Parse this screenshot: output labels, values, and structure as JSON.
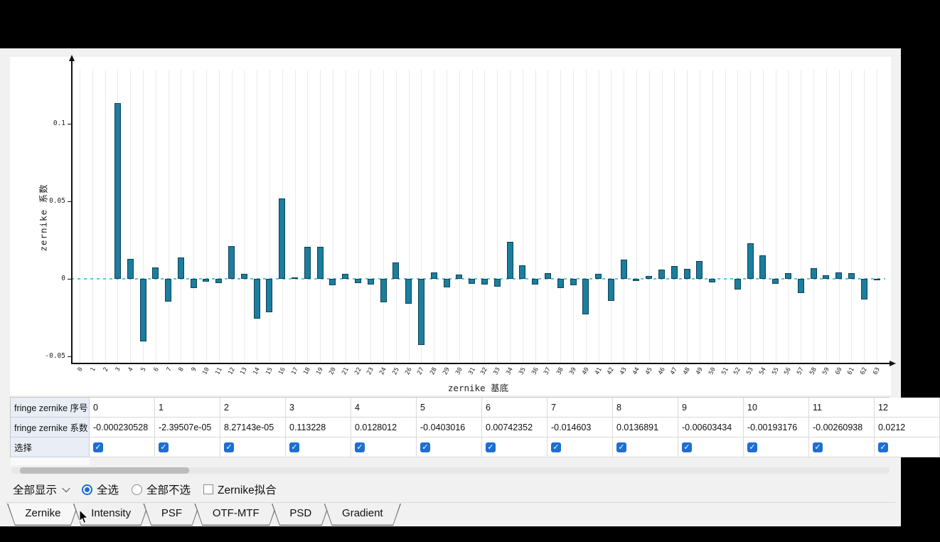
{
  "chart_data": {
    "type": "bar",
    "title": "",
    "xlabel": "zernike 基底",
    "ylabel": "zernike 系数",
    "x": [
      0,
      1,
      2,
      3,
      4,
      5,
      6,
      7,
      8,
      9,
      10,
      11,
      12,
      13,
      14,
      15,
      16,
      17,
      18,
      19,
      20,
      21,
      22,
      23,
      24,
      25,
      26,
      27,
      28,
      29,
      30,
      31,
      32,
      33,
      34,
      35,
      36,
      37,
      38,
      39,
      40,
      41,
      42,
      43,
      44,
      45,
      46,
      47,
      48,
      49,
      50,
      51,
      52,
      53,
      54,
      55,
      56,
      57,
      58,
      59,
      60,
      61,
      62,
      63
    ],
    "values": [
      -0.000230528,
      -2.39507e-05,
      8.27143e-05,
      0.113228,
      0.0128012,
      -0.0403016,
      0.00742352,
      -0.014603,
      0.0136891,
      -0.00603434,
      -0.00193176,
      -0.00260938,
      0.0212,
      0.0032,
      -0.0257,
      -0.0216,
      0.0518,
      0.001,
      0.0205,
      0.0208,
      -0.004,
      0.0031,
      -0.0027,
      -0.0038,
      -0.0149,
      0.0104,
      -0.0162,
      -0.0428,
      0.004,
      -0.0054,
      0.0028,
      -0.0032,
      -0.0036,
      -0.005,
      0.0239,
      0.0086,
      -0.0036,
      0.0036,
      -0.0059,
      -0.0041,
      -0.023,
      0.0032,
      -0.014,
      0.0122,
      -0.0014,
      0.0018,
      0.006,
      0.0081,
      0.0064,
      0.0113,
      -0.0023,
      0.0005,
      -0.0068,
      0.023,
      0.0153,
      -0.0032,
      0.0036,
      -0.009,
      0.0068,
      0.0023,
      0.004,
      0.0035,
      -0.0135,
      -0.001
    ],
    "ylim": [
      -0.054,
      0.135
    ],
    "yticks": [
      -0.05,
      0,
      0.05,
      0.1
    ],
    "ytick_labels": [
      "-0.05",
      "0",
      "0.05",
      "0.1"
    ],
    "bar_color": "#1b7e9e",
    "bar_border_color": "#0d4156",
    "zero_line_color": "#4fccd8",
    "grid": "vertical",
    "legend": "none"
  },
  "table": {
    "row_headers": [
      "fringe zernike 序号",
      "fringe zernike 系数",
      "选择"
    ],
    "indices": [
      "0",
      "1",
      "2",
      "3",
      "4",
      "5",
      "6",
      "7",
      "8",
      "9",
      "10",
      "11",
      "12"
    ],
    "coefficients": [
      "-0.000230528",
      "-2.39507e-05",
      "8.27143e-05",
      "0.113228",
      "0.0128012",
      "-0.0403016",
      "0.00742352",
      "-0.014603",
      "0.0136891",
      "-0.00603434",
      "-0.00193176",
      "-0.00260938",
      "0.0212"
    ],
    "selected": [
      true,
      true,
      true,
      true,
      true,
      true,
      true,
      true,
      true,
      true,
      true,
      true,
      true
    ]
  },
  "controls": {
    "display_dropdown_value": "全部显示",
    "select_all_label": "全选",
    "select_all_checked": true,
    "select_none_label": "全部不选",
    "select_none_checked": false,
    "fit_label": "Zernike拟合",
    "fit_checked": false
  },
  "tabs": {
    "items": [
      "Zernike",
      "Intensity",
      "PSF",
      "OTF-MTF",
      "PSD",
      "Gradient"
    ],
    "active_index": 0
  }
}
